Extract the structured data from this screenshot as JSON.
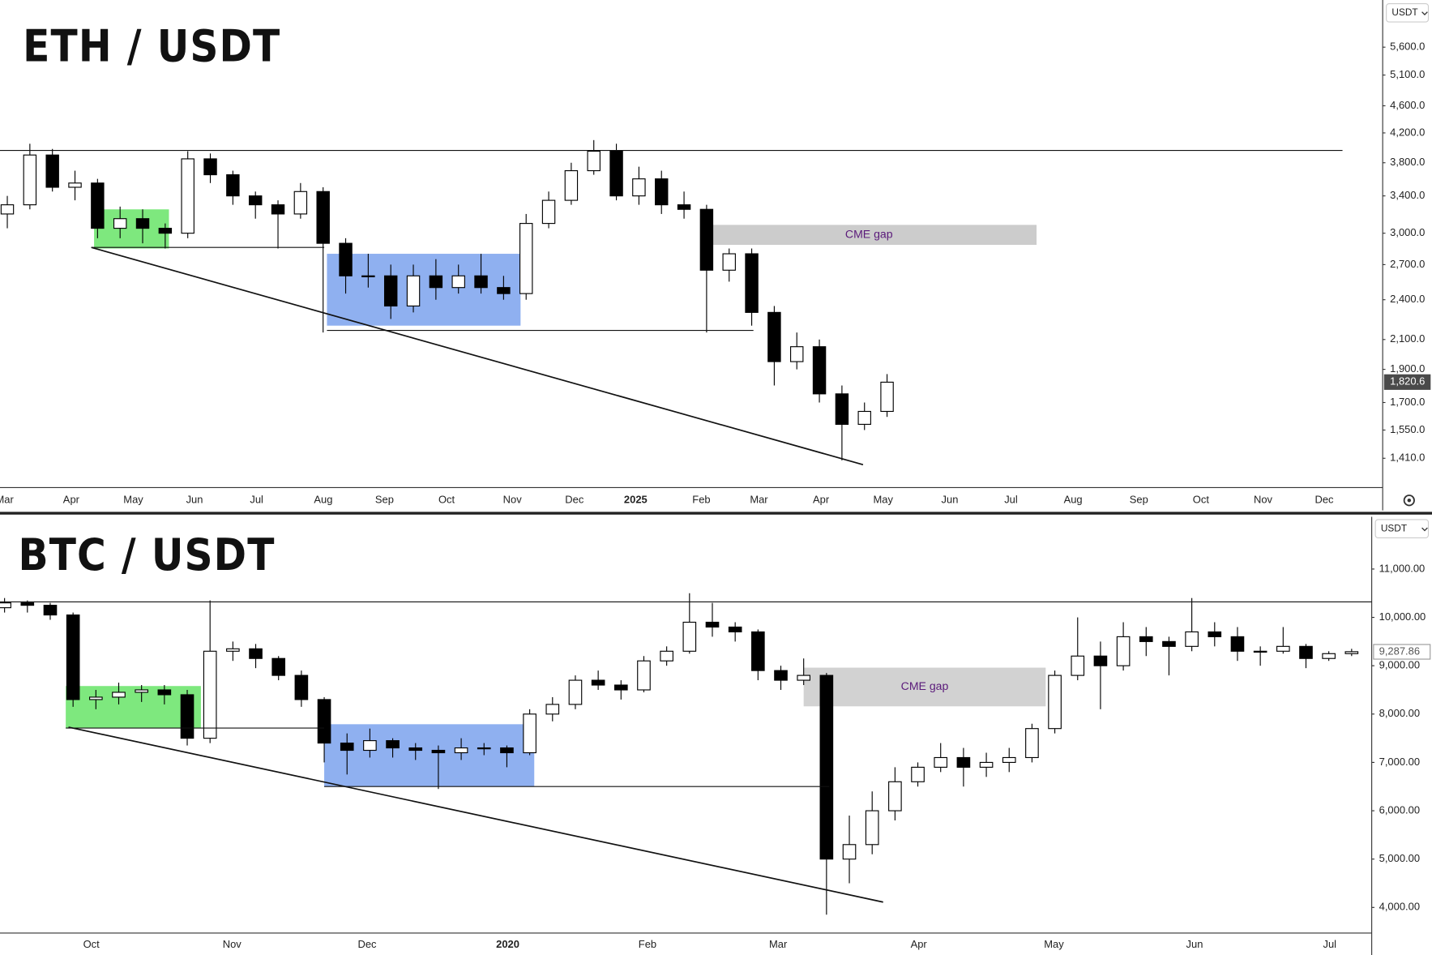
{
  "chart_data": [
    {
      "type": "candlestick",
      "title": "ETH / USDT",
      "currency": "USDT",
      "log_scale": true,
      "ylim": [
        1278,
        6560
      ],
      "yticks": [
        {
          "value": 5600,
          "label": "5,600.0"
        },
        {
          "value": 5100,
          "label": "5,100.0"
        },
        {
          "value": 4600,
          "label": "4,600.0"
        },
        {
          "value": 4200,
          "label": "4,200.0"
        },
        {
          "value": 3800,
          "label": "3,800.0"
        },
        {
          "value": 3400,
          "label": "3,400.0"
        },
        {
          "value": 3000,
          "label": "3,000.0"
        },
        {
          "value": 2700,
          "label": "2,700.0"
        },
        {
          "value": 2400,
          "label": "2,400.0"
        },
        {
          "value": 2100,
          "label": "2,100.0"
        },
        {
          "value": 1900,
          "label": "1,900.0"
        },
        {
          "value": 1700,
          "label": "1,700.0"
        },
        {
          "value": 1550,
          "label": "1,550.0"
        },
        {
          "value": 1410,
          "label": "1,410.0"
        }
      ],
      "x_labels": [
        "Mar",
        "Apr",
        "May",
        "Jun",
        "Jul",
        "Aug",
        "Sep",
        "Oct",
        "Nov",
        "Dec",
        "2025",
        "Feb",
        "Mar",
        "Apr",
        "May",
        "Jun",
        "Jul",
        "Aug",
        "Sep",
        "Oct",
        "Nov",
        "Dec"
      ],
      "colors": {
        "up": "#ffffff",
        "down": "#000000",
        "wick": "#000000"
      },
      "candles": [
        [
          3200,
          3400,
          3050,
          3300
        ],
        [
          3300,
          4050,
          3250,
          3900
        ],
        [
          3900,
          3980,
          3450,
          3500
        ],
        [
          3500,
          3700,
          3350,
          3550
        ],
        [
          3550,
          3600,
          2950,
          3050
        ],
        [
          3050,
          3280,
          2950,
          3150
        ],
        [
          3150,
          3250,
          2900,
          3050
        ],
        [
          3050,
          3100,
          2850,
          3000
        ],
        [
          3000,
          3950,
          2950,
          3850
        ],
        [
          3850,
          3920,
          3550,
          3650
        ],
        [
          3650,
          3700,
          3300,
          3400
        ],
        [
          3400,
          3450,
          3150,
          3300
        ],
        [
          3300,
          3350,
          2850,
          3200
        ],
        [
          3200,
          3550,
          3150,
          3450
        ],
        [
          3450,
          3500,
          2150,
          2900
        ],
        [
          2900,
          2950,
          2450,
          2600
        ],
        [
          2600,
          2800,
          2500,
          2600
        ],
        [
          2600,
          2700,
          2250,
          2350
        ],
        [
          2350,
          2700,
          2300,
          2600
        ],
        [
          2600,
          2750,
          2400,
          2500
        ],
        [
          2500,
          2700,
          2450,
          2600
        ],
        [
          2600,
          2800,
          2450,
          2500
        ],
        [
          2500,
          2600,
          2400,
          2450
        ],
        [
          2450,
          3200,
          2400,
          3100
        ],
        [
          3100,
          3450,
          3050,
          3350
        ],
        [
          3350,
          3800,
          3300,
          3700
        ],
        [
          3700,
          4100,
          3650,
          3950
        ],
        [
          3950,
          4050,
          3350,
          3400
        ],
        [
          3400,
          3750,
          3300,
          3600
        ],
        [
          3600,
          3700,
          3200,
          3300
        ],
        [
          3300,
          3450,
          3150,
          3250
        ],
        [
          3250,
          3300,
          2150,
          2650
        ],
        [
          2650,
          2850,
          2550,
          2800
        ],
        [
          2800,
          2850,
          2200,
          2300
        ],
        [
          2300,
          2350,
          1800,
          1950
        ],
        [
          1950,
          2150,
          1900,
          2050
        ],
        [
          2050,
          2100,
          1700,
          1750
        ],
        [
          1750,
          1800,
          1400,
          1580
        ],
        [
          1580,
          1700,
          1550,
          1650
        ],
        [
          1650,
          1870,
          1620,
          1820
        ]
      ],
      "last_price": {
        "value": 1820.6,
        "label": "1,820.6"
      },
      "resistance": 3960,
      "zones": [
        {
          "low": 2850,
          "high": 3250,
          "color": "#7ee87e"
        },
        {
          "low": 2200,
          "high": 2800,
          "color": "#8fb0f0"
        }
      ],
      "supports": [
        2860,
        2165
      ],
      "trendline": [
        2860,
        1380
      ],
      "cme_gap": {
        "label": "CME gap",
        "low": 2885,
        "high": 3085,
        "color": "#cccccc"
      }
    },
    {
      "type": "candlestick",
      "title": "BTC / USDT",
      "currency": "USDT",
      "log_scale": false,
      "ylim": [
        3470,
        12080
      ],
      "yticks": [
        {
          "value": 11000,
          "label": "11,000.00"
        },
        {
          "value": 10000,
          "label": "10,000.00"
        },
        {
          "value": 9000,
          "label": "9,000.00"
        },
        {
          "value": 8000,
          "label": "8,000.00"
        },
        {
          "value": 7000,
          "label": "7,000.00"
        },
        {
          "value": 6000,
          "label": "6,000.00"
        },
        {
          "value": 5000,
          "label": "5,000.00"
        },
        {
          "value": 4000,
          "label": "4,000.00"
        }
      ],
      "x_labels": [
        "Oct",
        "Nov",
        "Dec",
        "2020",
        "Feb",
        "Mar",
        "Apr",
        "May",
        "Jun",
        "Jul"
      ],
      "colors": {
        "up": "#ffffff",
        "down": "#000000",
        "wick": "#000000"
      },
      "candles": [
        [
          10200,
          10400,
          10100,
          10300
        ],
        [
          10300,
          10350,
          10100,
          10250
        ],
        [
          10250,
          10300,
          9950,
          10050
        ],
        [
          10050,
          10100,
          8150,
          8300
        ],
        [
          8300,
          8500,
          8100,
          8350
        ],
        [
          8350,
          8650,
          8200,
          8450
        ],
        [
          8450,
          8600,
          8250,
          8500
        ],
        [
          8500,
          8600,
          8200,
          8400
        ],
        [
          8400,
          8500,
          7350,
          7500
        ],
        [
          7500,
          10350,
          7400,
          9300
        ],
        [
          9300,
          9500,
          9100,
          9350
        ],
        [
          9350,
          9450,
          8950,
          9150
        ],
        [
          9150,
          9200,
          8700,
          8800
        ],
        [
          8800,
          8900,
          8150,
          8300
        ],
        [
          8300,
          8350,
          7000,
          7400
        ],
        [
          7400,
          7600,
          6750,
          7250
        ],
        [
          7250,
          7700,
          7100,
          7450
        ],
        [
          7450,
          7500,
          7100,
          7300
        ],
        [
          7300,
          7400,
          7050,
          7250
        ],
        [
          7250,
          7350,
          6450,
          7200
        ],
        [
          7200,
          7500,
          7050,
          7300
        ],
        [
          7300,
          7400,
          7150,
          7300
        ],
        [
          7300,
          7350,
          6900,
          7200
        ],
        [
          7200,
          8100,
          7150,
          8000
        ],
        [
          8000,
          8350,
          7850,
          8200
        ],
        [
          8200,
          8800,
          8100,
          8700
        ],
        [
          8700,
          8900,
          8500,
          8600
        ],
        [
          8600,
          8700,
          8300,
          8500
        ],
        [
          8500,
          9200,
          8450,
          9100
        ],
        [
          9100,
          9400,
          9000,
          9300
        ],
        [
          9300,
          10500,
          9250,
          9900
        ],
        [
          9900,
          10300,
          9600,
          9800
        ],
        [
          9800,
          9900,
          9500,
          9700
        ],
        [
          9700,
          9750,
          8700,
          8900
        ],
        [
          8900,
          9000,
          8500,
          8700
        ],
        [
          8700,
          9150,
          8600,
          8800
        ],
        [
          8800,
          8850,
          3850,
          5000
        ],
        [
          5000,
          5900,
          4500,
          5300
        ],
        [
          5300,
          6400,
          5100,
          6000
        ],
        [
          6000,
          6900,
          5800,
          6600
        ],
        [
          6600,
          7000,
          6500,
          6900
        ],
        [
          6900,
          7400,
          6800,
          7100
        ],
        [
          7100,
          7300,
          6500,
          6900
        ],
        [
          6900,
          7200,
          6700,
          7000
        ],
        [
          7000,
          7300,
          6800,
          7100
        ],
        [
          7100,
          7800,
          7000,
          7700
        ],
        [
          7700,
          8900,
          7600,
          8800
        ],
        [
          8800,
          10000,
          8700,
          9200
        ],
        [
          9200,
          9500,
          8100,
          9000
        ],
        [
          9000,
          9900,
          8900,
          9600
        ],
        [
          9600,
          9800,
          9200,
          9500
        ],
        [
          9500,
          9600,
          8800,
          9400
        ],
        [
          9400,
          10400,
          9300,
          9700
        ],
        [
          9700,
          9900,
          9400,
          9600
        ],
        [
          9600,
          9800,
          9100,
          9300
        ],
        [
          9300,
          9400,
          9000,
          9300
        ],
        [
          9300,
          9800,
          9250,
          9400
        ],
        [
          9400,
          9450,
          8950,
          9150
        ],
        [
          9150,
          9300,
          9100,
          9250
        ],
        [
          9250,
          9350,
          9200,
          9290
        ]
      ],
      "last_price": {
        "value": 9287.86,
        "label": "9,287.86"
      },
      "resistance": 10320,
      "zones": [
        {
          "low": 7710,
          "high": 8580,
          "color": "#7ee87e"
        },
        {
          "low": 6500,
          "high": 7790,
          "color": "#8fb0f0"
        }
      ],
      "supports": [
        7710,
        6500
      ],
      "trendline": [
        7730,
        4110
      ],
      "cme_gap": {
        "label": "CME gap",
        "low": 8160,
        "high": 8960,
        "color": "#d2d2d2"
      }
    }
  ]
}
